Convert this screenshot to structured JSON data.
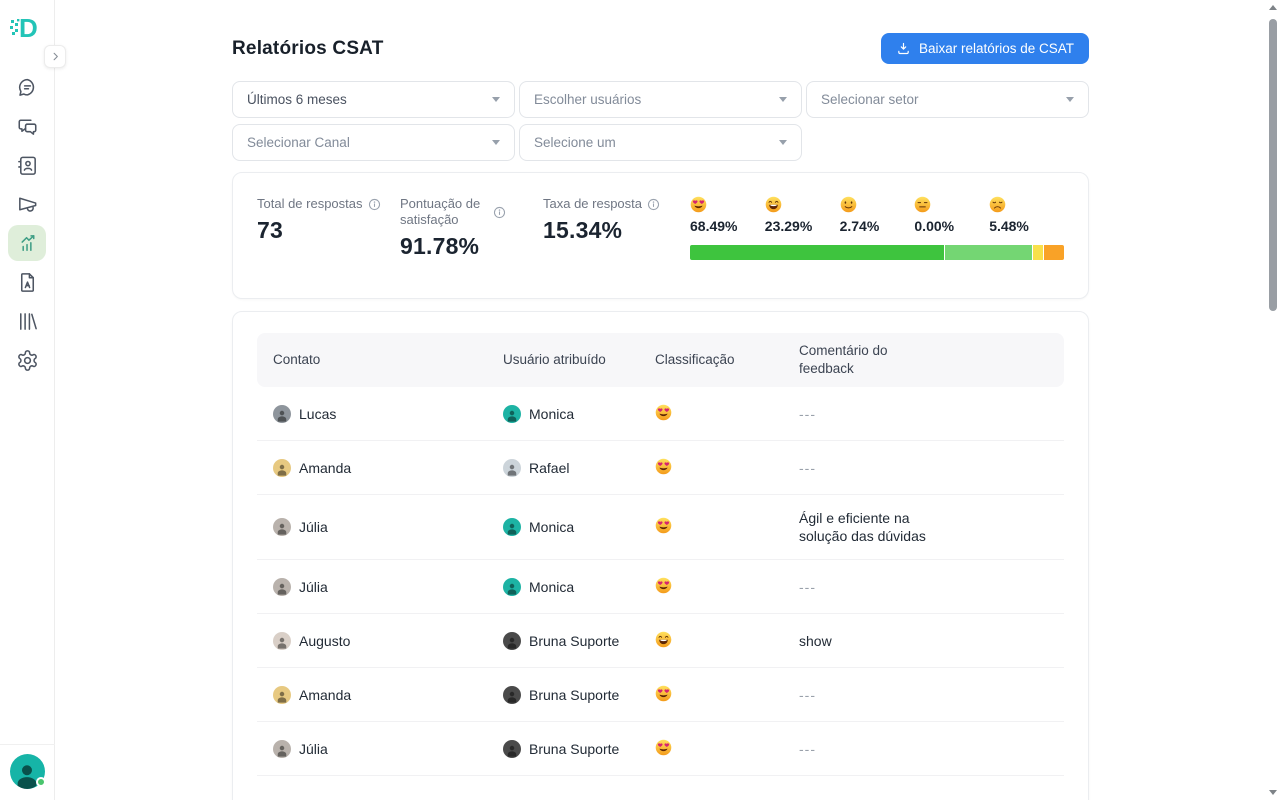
{
  "colors": {
    "accent_blue": "#2f80ed",
    "brand_teal": "#23c4b7",
    "active_nav_bg": "#dfeeda",
    "active_nav_icon": "#3f9e85"
  },
  "sidebar": {
    "items": [
      "chat",
      "conversations",
      "contacts",
      "campaigns",
      "reports",
      "documents",
      "library",
      "settings"
    ],
    "active_item": "reports"
  },
  "header": {
    "title": "Relatórios CSAT",
    "download_button": "Baixar relatórios de CSAT"
  },
  "filters": {
    "period": "Últimos 6 meses",
    "users_placeholder": "Escolher usuários",
    "sector_placeholder": "Selecionar setor",
    "channel_placeholder": "Selecionar Canal",
    "generic_placeholder": "Selecione um"
  },
  "stats": {
    "total_responses": {
      "label": "Total de respostas",
      "value": "73"
    },
    "satisfaction_score": {
      "label": "Pontuação de satisfação",
      "value": "91.78%"
    },
    "response_rate": {
      "label": "Taxa de resposta",
      "value": "15.34%"
    },
    "breakdown": [
      {
        "emoji": "heart-eyes",
        "percent": "68.49%",
        "value": 68.49,
        "bar_color": "#3ec43e"
      },
      {
        "emoji": "grinning",
        "percent": "23.29%",
        "value": 23.29,
        "bar_color": "#74d673"
      },
      {
        "emoji": "slight-smile",
        "percent": "2.74%",
        "value": 2.74,
        "bar_color": "#f8e04b"
      },
      {
        "emoji": "expressionless",
        "percent": "0.00%",
        "value": 0,
        "bar_color": "#e8e8e8"
      },
      {
        "emoji": "disappointed",
        "percent": "5.48%",
        "value": 5.48,
        "bar_color": "#f9a227"
      }
    ]
  },
  "table": {
    "headers": [
      "Contato",
      "Usuário atribuído",
      "Classificação",
      "Comentário do feedback"
    ],
    "rows": [
      {
        "contact": "Lucas",
        "contact_color": "#8e959c",
        "agent": "Monica",
        "agent_color": "#1db3a4",
        "rating": "heart-eyes",
        "comment": "---"
      },
      {
        "contact": "Amanda",
        "contact_color": "#e7c981",
        "agent": "Rafael",
        "agent_color": "#ccd4da",
        "rating": "heart-eyes",
        "comment": "---"
      },
      {
        "contact": "Júlia",
        "contact_color": "#b9b2ac",
        "agent": "Monica",
        "agent_color": "#1db3a4",
        "rating": "heart-eyes",
        "comment": "Ágil e eficiente na solução das dúvidas"
      },
      {
        "contact": "Júlia",
        "contact_color": "#b9b2ac",
        "agent": "Monica",
        "agent_color": "#1db3a4",
        "rating": "heart-eyes",
        "comment": "---"
      },
      {
        "contact": "Augusto",
        "contact_color": "#d9cfc7",
        "agent": "Bruna Suporte",
        "agent_color": "#4a4a4a",
        "rating": "grinning",
        "comment": "show"
      },
      {
        "contact": "Amanda",
        "contact_color": "#e7c981",
        "agent": "Bruna Suporte",
        "agent_color": "#4a4a4a",
        "rating": "heart-eyes",
        "comment": "---"
      },
      {
        "contact": "Júlia",
        "contact_color": "#b9b2ac",
        "agent": "Bruna Suporte",
        "agent_color": "#4a4a4a",
        "rating": "heart-eyes",
        "comment": "---"
      }
    ]
  }
}
